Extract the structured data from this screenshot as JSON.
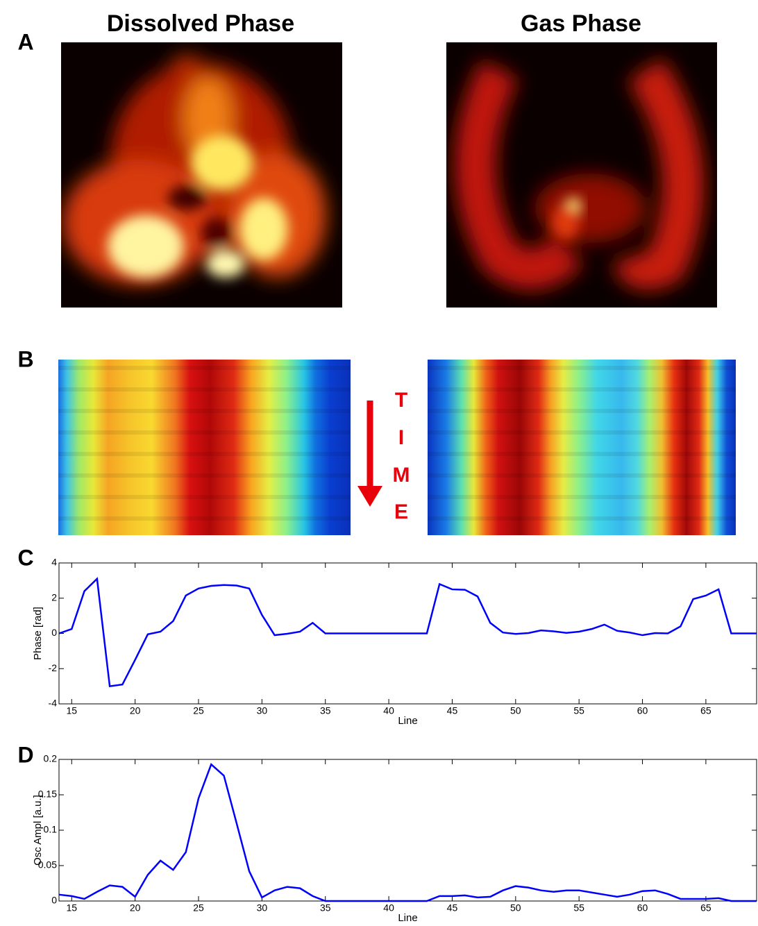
{
  "panels": {
    "a": "A",
    "b": "B",
    "c": "C",
    "d": "D"
  },
  "titles": {
    "dissolved": "Dissolved Phase",
    "gas": "Gas Phase"
  },
  "time_letters": [
    "T",
    "I",
    "M",
    "E"
  ],
  "chart_data": [
    {
      "type": "line",
      "ylabel": "Phase [rad]",
      "xlabel": "Line",
      "x": [
        14,
        15,
        16,
        17,
        18,
        19,
        20,
        21,
        22,
        23,
        24,
        25,
        26,
        27,
        28,
        29,
        30,
        31,
        32,
        33,
        34,
        35,
        36,
        37,
        38,
        39,
        40,
        41,
        42,
        43,
        44,
        45,
        46,
        47,
        48,
        49,
        50,
        51,
        52,
        53,
        54,
        55,
        56,
        57,
        58,
        59,
        60,
        61,
        62,
        63,
        64,
        65,
        66,
        67,
        68,
        69
      ],
      "series": [
        {
          "color": "#0000ff",
          "values": [
            0,
            0.25,
            2.4,
            3.1,
            -3.0,
            -2.9,
            -1.5,
            -0.05,
            0.1,
            0.7,
            2.15,
            2.55,
            2.7,
            2.75,
            2.72,
            2.55,
            1.05,
            -0.1,
            -0.02,
            0.1,
            0.6,
            0,
            0,
            0,
            0,
            0,
            0,
            0,
            0,
            0,
            2.8,
            2.5,
            2.48,
            2.1,
            0.6,
            0.05,
            -0.03,
            0.02,
            0.17,
            0.12,
            0.03,
            0.1,
            0.25,
            0.5,
            0.15,
            0.05,
            -0.1,
            0.02,
            0,
            0.4,
            1.95,
            2.15,
            2.5,
            0,
            0,
            0
          ]
        }
      ],
      "xlim": [
        14,
        69
      ],
      "ylim": [
        -4,
        4
      ],
      "xticks": [
        15,
        20,
        25,
        30,
        35,
        40,
        45,
        50,
        55,
        60,
        65
      ],
      "yticks": [
        -4,
        -2,
        0,
        2,
        4
      ]
    },
    {
      "type": "line",
      "ylabel": "Osc Ampl [a.u.]",
      "xlabel": "Line",
      "x": [
        14,
        15,
        16,
        17,
        18,
        19,
        20,
        21,
        22,
        23,
        24,
        25,
        26,
        27,
        28,
        29,
        30,
        31,
        32,
        33,
        34,
        35,
        36,
        37,
        38,
        39,
        40,
        41,
        42,
        43,
        44,
        45,
        46,
        47,
        48,
        49,
        50,
        51,
        52,
        53,
        54,
        55,
        56,
        57,
        58,
        59,
        60,
        61,
        62,
        63,
        64,
        65,
        66,
        67,
        68,
        69
      ],
      "series": [
        {
          "color": "#0000ff",
          "values": [
            0.009,
            0.007,
            0.003,
            0.013,
            0.022,
            0.02,
            0.006,
            0.037,
            0.057,
            0.044,
            0.069,
            0.145,
            0.193,
            0.177,
            0.11,
            0.042,
            0.005,
            0.015,
            0.02,
            0.018,
            0.007,
            0,
            0,
            0,
            0,
            0,
            0,
            0,
            0,
            0,
            0.007,
            0.007,
            0.008,
            0.005,
            0.006,
            0.015,
            0.021,
            0.019,
            0.015,
            0.013,
            0.015,
            0.015,
            0.012,
            0.009,
            0.006,
            0.009,
            0.014,
            0.015,
            0.01,
            0.003,
            0.003,
            0.003,
            0.004,
            0,
            0,
            0
          ]
        }
      ],
      "xlim": [
        14,
        69
      ],
      "ylim": [
        0,
        0.2
      ],
      "xticks": [
        15,
        20,
        25,
        30,
        35,
        40,
        45,
        50,
        55,
        60,
        65
      ],
      "yticks": [
        0,
        0.05,
        0.1,
        0.15,
        0.2
      ]
    }
  ]
}
